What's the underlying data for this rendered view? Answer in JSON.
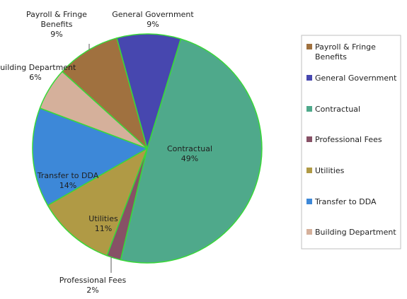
{
  "chart_data": {
    "type": "pie",
    "title": "",
    "slices": [
      {
        "label": "Contractual",
        "value": 49,
        "pct_label": "49%",
        "color": "#4fa98b"
      },
      {
        "label": "Professional Fees",
        "value": 2,
        "pct_label": "2%",
        "color": "#875166"
      },
      {
        "label": "Utilities",
        "value": 11,
        "pct_label": "11%",
        "color": "#b09a45"
      },
      {
        "label": "Transfer to DDA",
        "value": 14,
        "pct_label": "14%",
        "color": "#3d88d8"
      },
      {
        "label": "Building Department",
        "value": 6,
        "pct_label": "6%",
        "color": "#d5b09b"
      },
      {
        "label": "Payroll & Fringe Benefits",
        "value": 9,
        "pct_label": "9%",
        "color": "#a0713f"
      },
      {
        "label": "General Government",
        "value": 9,
        "pct_label": "9%",
        "color": "#4747af"
      }
    ],
    "slice_border_color": "#39d839",
    "legend": {
      "position": "right",
      "items": [
        {
          "label": "Payroll & Fringe Benefits",
          "color": "#a0713f"
        },
        {
          "label": "General Government",
          "color": "#4747af"
        },
        {
          "label": "Contractual",
          "color": "#4fa98b"
        },
        {
          "label": "Professional Fees",
          "color": "#875166"
        },
        {
          "label": "Utilities",
          "color": "#b09a45"
        },
        {
          "label": "Transfer to DDA",
          "color": "#3d88d8"
        },
        {
          "label": "Building Department",
          "color": "#d5b09b"
        }
      ]
    }
  }
}
